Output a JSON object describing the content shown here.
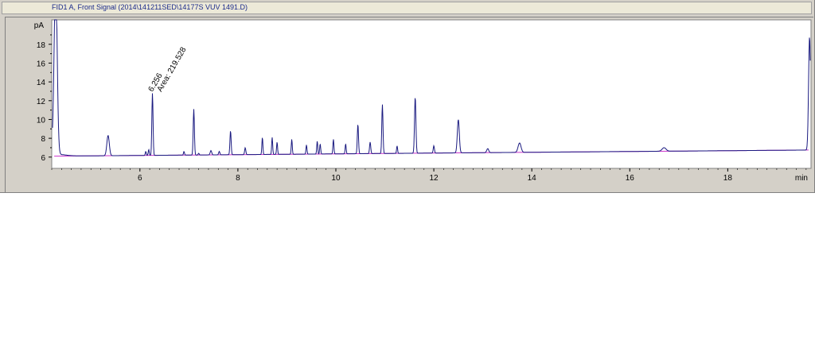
{
  "window": {
    "title": "FID1 A, Front Signal (2014\\141211SED\\14177S VUV 1491.D)"
  },
  "chart_data": {
    "type": "line",
    "title": "FID1 A, Front Signal (2014\\141211SED\\14177S VUV 1491.D)",
    "xlabel": "min",
    "ylabel": "pA",
    "xlim": [
      4.2,
      19.7
    ],
    "ylim": [
      4.8,
      20.6
    ],
    "x_ticks": [
      6,
      8,
      10,
      12,
      14,
      16,
      18
    ],
    "y_ticks": [
      6,
      8,
      10,
      12,
      14,
      16,
      18
    ],
    "grid": false,
    "colors": {
      "signal": "#1a1a80",
      "baseline": "#cc33cc"
    },
    "baseline": {
      "x": [
        4.25,
        19.65
      ],
      "y": [
        6.1,
        6.75
      ]
    },
    "signal_start": 6.3,
    "signal_end": 6.7,
    "peaks": [
      {
        "rt": 4.28,
        "height": 25.0,
        "width": 0.03
      },
      {
        "rt": 4.35,
        "height": 6.0,
        "width": 0.05
      },
      {
        "rt": 5.35,
        "height": 8.3,
        "width": 0.025
      },
      {
        "rt": 6.12,
        "height": 6.6,
        "width": 0.01
      },
      {
        "rt": 6.18,
        "height": 6.8,
        "width": 0.01
      },
      {
        "rt": 6.256,
        "height": 12.8,
        "width": 0.012
      },
      {
        "rt": 6.9,
        "height": 6.6,
        "width": 0.01
      },
      {
        "rt": 7.1,
        "height": 11.1,
        "width": 0.012
      },
      {
        "rt": 7.2,
        "height": 6.4,
        "width": 0.01
      },
      {
        "rt": 7.45,
        "height": 6.7,
        "width": 0.015
      },
      {
        "rt": 7.62,
        "height": 6.6,
        "width": 0.012
      },
      {
        "rt": 7.85,
        "height": 8.8,
        "width": 0.012
      },
      {
        "rt": 8.15,
        "height": 7.0,
        "width": 0.012
      },
      {
        "rt": 8.5,
        "height": 8.1,
        "width": 0.01
      },
      {
        "rt": 8.7,
        "height": 8.1,
        "width": 0.01
      },
      {
        "rt": 8.8,
        "height": 7.6,
        "width": 0.01
      },
      {
        "rt": 9.1,
        "height": 7.9,
        "width": 0.01
      },
      {
        "rt": 9.4,
        "height": 7.3,
        "width": 0.01
      },
      {
        "rt": 9.62,
        "height": 7.7,
        "width": 0.01
      },
      {
        "rt": 9.68,
        "height": 7.4,
        "width": 0.01
      },
      {
        "rt": 9.95,
        "height": 7.9,
        "width": 0.01
      },
      {
        "rt": 10.2,
        "height": 7.4,
        "width": 0.01
      },
      {
        "rt": 10.45,
        "height": 9.5,
        "width": 0.012
      },
      {
        "rt": 10.7,
        "height": 7.6,
        "width": 0.012
      },
      {
        "rt": 10.95,
        "height": 11.6,
        "width": 0.012
      },
      {
        "rt": 11.25,
        "height": 7.2,
        "width": 0.01
      },
      {
        "rt": 11.62,
        "height": 12.4,
        "width": 0.014
      },
      {
        "rt": 12.0,
        "height": 7.2,
        "width": 0.012
      },
      {
        "rt": 12.5,
        "height": 10.0,
        "width": 0.02
      },
      {
        "rt": 13.1,
        "height": 6.9,
        "width": 0.02
      },
      {
        "rt": 13.75,
        "height": 7.5,
        "width": 0.03
      },
      {
        "rt": 16.7,
        "height": 7.0,
        "width": 0.04
      },
      {
        "rt": 19.67,
        "height": 18.8,
        "width": 0.02
      }
    ],
    "annotations": [
      {
        "x": 6.256,
        "lines": [
          "6.256",
          "Area: 219.528"
        ]
      }
    ]
  }
}
